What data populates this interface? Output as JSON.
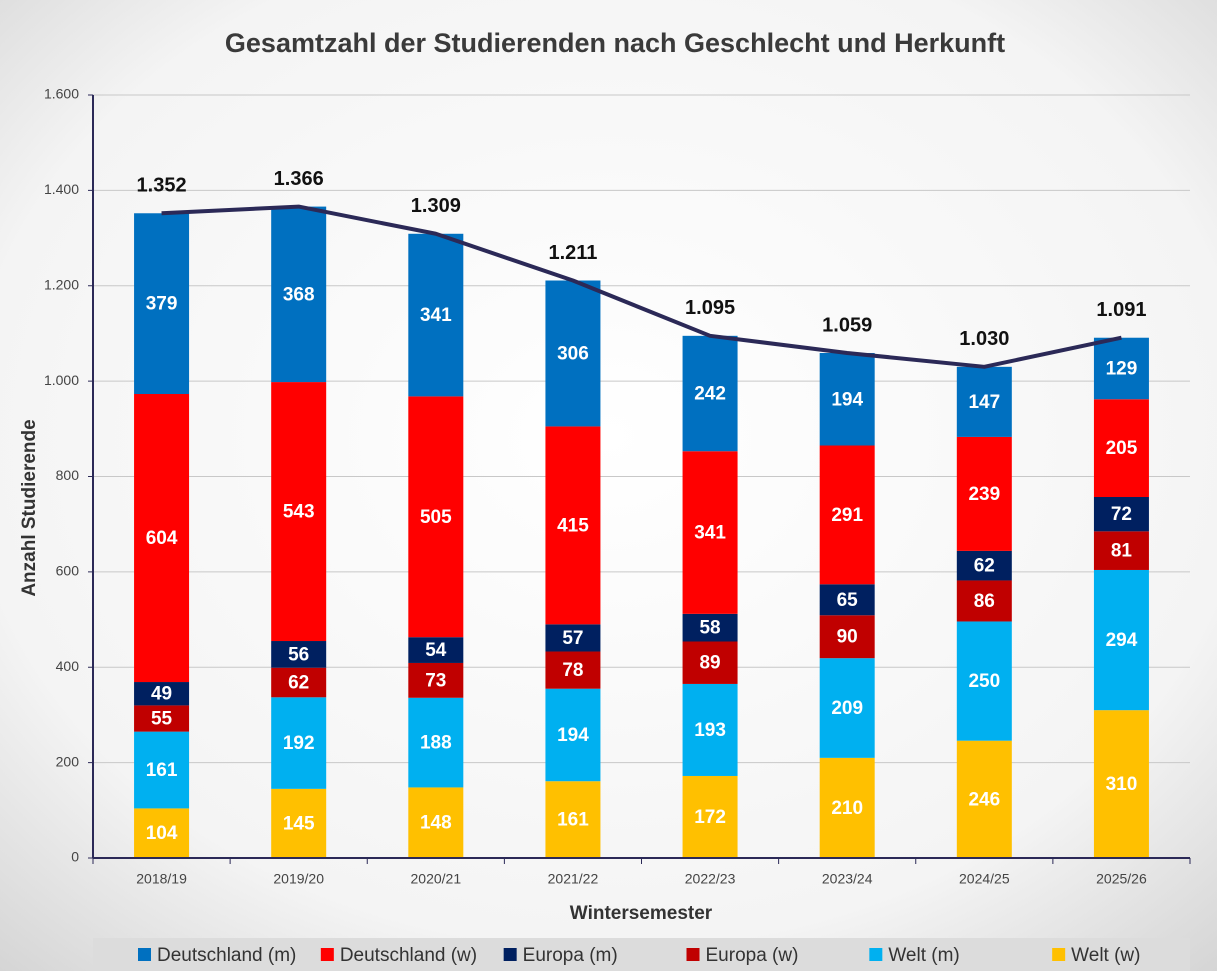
{
  "chart_data": {
    "type": "stacked_bar_line",
    "title": "Gesamtzahl der Studierenden nach Geschlecht und Herkunft",
    "xlabel": "Wintersemester",
    "ylabel": "Anzahl Studierende",
    "categories": [
      "2018/19",
      "2019/20",
      "2020/21",
      "2021/22",
      "2022/23",
      "2023/24",
      "2024/25",
      "2025/26"
    ],
    "series": [
      {
        "name": "Deutschland (m)",
        "color": "#0070c0",
        "values": [
          379,
          368,
          341,
          306,
          242,
          194,
          147,
          129
        ]
      },
      {
        "name": "Deutschland (w)",
        "color": "#ff0000",
        "values": [
          604,
          543,
          505,
          415,
          341,
          291,
          239,
          205
        ]
      },
      {
        "name": "Europa (m)",
        "color": "#002060",
        "values": [
          49,
          56,
          54,
          57,
          58,
          65,
          62,
          72
        ]
      },
      {
        "name": "Europa (w)",
        "color": "#c00000",
        "values": [
          55,
          62,
          73,
          78,
          89,
          90,
          86,
          81
        ]
      },
      {
        "name": "Welt (m)",
        "color": "#00b0f0",
        "values": [
          161,
          192,
          188,
          194,
          193,
          209,
          250,
          294
        ]
      },
      {
        "name": "Welt (w)",
        "color": "#ffc000",
        "values": [
          104,
          145,
          148,
          161,
          172,
          210,
          246,
          310
        ]
      }
    ],
    "totals": {
      "color": "#2b2957",
      "values": [
        1352,
        1366,
        1309,
        1211,
        1095,
        1059,
        1030,
        1091
      ],
      "value_labels": [
        "1.352",
        "1.366",
        "1.309",
        "1.211",
        "1.095",
        "1.059",
        "1.030",
        "1.091"
      ]
    },
    "ylim": [
      0,
      1600
    ],
    "yticks": [
      0,
      200,
      400,
      600,
      800,
      {
        "value": 1000,
        "label": "1.000"
      },
      {
        "value": 1200,
        "label": "1.200"
      },
      {
        "value": 1400,
        "label": "1.400"
      },
      {
        "value": 1600,
        "label": "1.600"
      }
    ],
    "grid": true,
    "legend": "bottom"
  }
}
